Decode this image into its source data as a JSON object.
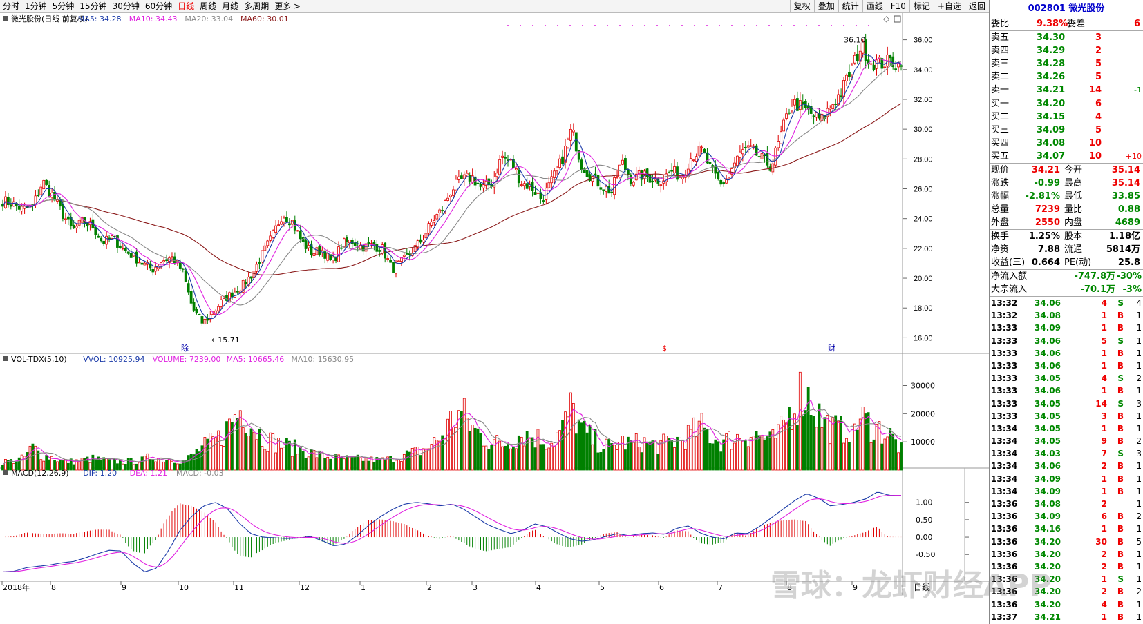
{
  "toolbar": {
    "timeframes": [
      "分时",
      "1分钟",
      "5分钟",
      "15分钟",
      "30分钟",
      "60分钟",
      "日线",
      "周线",
      "月线",
      "多周期",
      "更多 >"
    ],
    "active": 6,
    "right": [
      "复权",
      "叠加",
      "统计",
      "画线",
      "F10",
      "标记",
      "+自选",
      "返回"
    ]
  },
  "indicators": {
    "price_title": "微光股份(日线 前复权)",
    "ma": [
      {
        "label": "MA5: 34.28",
        "color": "#1a3aa8"
      },
      {
        "label": "MA10: 34.43",
        "color": "#e020e0"
      },
      {
        "label": "MA20: 33.04",
        "color": "#888888"
      },
      {
        "label": "MA60: 30.01",
        "color": "#8b1a1a"
      }
    ],
    "vol_title": "VOL-TDX(5,10)",
    "vol": [
      {
        "label": "VVOL: 10925.94",
        "color": "#1a3aa8"
      },
      {
        "label": "VOLUME: 7239.00",
        "color": "#e020e0"
      },
      {
        "label": "MA5: 10665.46",
        "color": "#e020e0"
      },
      {
        "label": "MA10: 15630.95",
        "color": "#888888"
      }
    ],
    "macd_title": "MACD(12,26,9)",
    "macd": [
      {
        "label": "DIF: 1.20",
        "color": "#1a3aa8"
      },
      {
        "label": "DEA: 1.21",
        "color": "#e020e0"
      },
      {
        "label": "MACD: -0.03",
        "color": "#888888"
      }
    ]
  },
  "chart_data": {
    "type": "candlestick",
    "x_labels": [
      "2018年",
      "8",
      "9",
      "10",
      "11",
      "12",
      "1",
      "2",
      "3",
      "4",
      "5",
      "6",
      "7",
      "8",
      "9"
    ],
    "price_ticks": [
      "36.00",
      "34.00",
      "32.00",
      "30.00",
      "28.00",
      "26.00",
      "24.00",
      "22.00",
      "20.00",
      "18.00",
      "16.00"
    ],
    "price_range": [
      15,
      37
    ],
    "annotations": {
      "high": "36.10",
      "low": "15.71"
    },
    "markers": [
      "除",
      "$",
      "财"
    ],
    "volume_ticks": [
      "30000",
      "20000",
      "10000"
    ],
    "volume_range": [
      0,
      36000
    ],
    "macd_ticks": [
      "1.00",
      "0.50",
      "0.00",
      "-0.50"
    ],
    "macd_range": [
      -1.25,
      1.55
    ],
    "period_label": "日线",
    "price_path": [
      25.2,
      25.0,
      24.6,
      24.8,
      26.5,
      25.5,
      24.3,
      23.2,
      23.8,
      23.5,
      22.4,
      22.7,
      22.0,
      21.5,
      21.0,
      20.6,
      21.2,
      21.4,
      20.5,
      18.0,
      17.0,
      17.6,
      18.5,
      19.0,
      19.5,
      20.3,
      21.6,
      22.8,
      24.3,
      23.8,
      22.4,
      21.7,
      21.9,
      21.0,
      22.3,
      22.5,
      22.1,
      22.2,
      22.0,
      20.6,
      21.1,
      21.8,
      22.6,
      23.8,
      24.6,
      26.0,
      26.6,
      26.8,
      26.0,
      26.4,
      28.2,
      27.7,
      26.4,
      26.1,
      25.3,
      26.5,
      27.9,
      30.0,
      27.6,
      26.8,
      26.2,
      25.8,
      27.8,
      26.6,
      26.9,
      26.7,
      26.6,
      27.2,
      26.8,
      28.2,
      28.6,
      27.2,
      26.2,
      27.3,
      28.5,
      28.6,
      28.0,
      27.5,
      29.7,
      31.8,
      31.5,
      31.0,
      30.6,
      31.6,
      32.5,
      34.0,
      35.6,
      34.5,
      34.4,
      34.6,
      34.21
    ],
    "volume_path": [
      3,
      3.2,
      4,
      8,
      5,
      4.5,
      3,
      3,
      3.5,
      4,
      3.5,
      3,
      3,
      3,
      3.5,
      5,
      4,
      4,
      3,
      5,
      8,
      10,
      12,
      18,
      22,
      16,
      12,
      10,
      9,
      8,
      7,
      6,
      5,
      4.5,
      4,
      4,
      3.8,
      3.6,
      3.5,
      4,
      5,
      6,
      7,
      9,
      12,
      18,
      20,
      15,
      12,
      10,
      9,
      11,
      13,
      12,
      11,
      10,
      14,
      22,
      14,
      11,
      9,
      8,
      10,
      9,
      10,
      9,
      9,
      10,
      11,
      13,
      15,
      12,
      10,
      11,
      12,
      13,
      12,
      10,
      14,
      22,
      28,
      25,
      18,
      15,
      14,
      16,
      18,
      16,
      14,
      12,
      7.2
    ],
    "macd_path": [
      -1.0,
      -0.98,
      -0.88,
      -0.84,
      -0.8,
      -0.74,
      -0.7,
      -0.6,
      -0.48,
      -0.38,
      -0.4,
      -0.75,
      -1.0,
      -0.9,
      -0.4,
      0.2,
      0.6,
      0.9,
      1.0,
      0.82,
      0.4,
      0.1,
      0.0,
      -0.02,
      -0.04,
      -0.03,
      0.02,
      -0.1,
      -0.25,
      -0.2,
      0.05,
      0.35,
      0.6,
      0.8,
      0.95,
      1.0,
      0.96,
      0.9,
      0.95,
      0.8,
      0.58,
      0.36,
      0.22,
      0.1,
      0.2,
      0.38,
      0.3,
      0.12,
      -0.05,
      -0.12,
      -0.08,
      0.02,
      0.1,
      0.04,
      0.1,
      0.12,
      0.08,
      0.25,
      0.32,
      0.12,
      0.0,
      -0.05,
      0.12,
      0.1,
      0.3,
      0.55,
      0.8,
      1.05,
      1.25,
      1.12,
      0.9,
      0.94,
      1.0,
      1.1,
      1.3,
      1.2,
      1.2
    ]
  },
  "quote": {
    "code": "002801",
    "name": "微光股份",
    "weibi_label": "委比",
    "weibi": "9.38%",
    "weicha_label": "委差",
    "weicha": "6",
    "asks": [
      {
        "label": "卖五",
        "price": "34.30",
        "vol": "3",
        "chg": ""
      },
      {
        "label": "卖四",
        "price": "34.29",
        "vol": "2",
        "chg": ""
      },
      {
        "label": "卖三",
        "price": "34.28",
        "vol": "5",
        "chg": ""
      },
      {
        "label": "卖二",
        "price": "34.26",
        "vol": "5",
        "chg": ""
      },
      {
        "label": "卖一",
        "price": "34.21",
        "vol": "14",
        "chg": "-1"
      }
    ],
    "bids": [
      {
        "label": "买一",
        "price": "34.20",
        "vol": "6",
        "chg": ""
      },
      {
        "label": "买二",
        "price": "34.15",
        "vol": "4",
        "chg": ""
      },
      {
        "label": "买三",
        "price": "34.09",
        "vol": "5",
        "chg": ""
      },
      {
        "label": "买四",
        "price": "34.08",
        "vol": "10",
        "chg": ""
      },
      {
        "label": "买五",
        "price": "34.07",
        "vol": "10",
        "chg": "+10"
      }
    ],
    "stats": [
      {
        "l1": "现价",
        "v1": "34.21",
        "c1": "red",
        "l2": "今开",
        "v2": "35.14",
        "c2": "red"
      },
      {
        "l1": "涨跌",
        "v1": "-0.99",
        "c1": "grn",
        "l2": "最高",
        "v2": "35.14",
        "c2": "red"
      },
      {
        "l1": "涨幅",
        "v1": "-2.81%",
        "c1": "grn",
        "l2": "最低",
        "v2": "33.85",
        "c2": "grn"
      },
      {
        "l1": "总量",
        "v1": "7239",
        "c1": "red",
        "l2": "量比",
        "v2": "0.88",
        "c2": "grn"
      },
      {
        "l1": "外盘",
        "v1": "2550",
        "c1": "red",
        "l2": "内盘",
        "v2": "4689",
        "c2": "grn"
      }
    ],
    "stats2": [
      {
        "l1": "换手",
        "v1": "1.25%",
        "l2": "股本",
        "v2": "1.18亿"
      },
      {
        "l1": "净资",
        "v1": "7.88",
        "l2": "流通",
        "v2": "5814万"
      },
      {
        "l1": "收益(三)",
        "v1": "0.664",
        "l2": "PE(动)",
        "v2": "25.8"
      }
    ],
    "flows": [
      {
        "label": "净流入额",
        "value": "-747.8万",
        "pct": "-30%"
      },
      {
        "label": "大宗流入",
        "value": "-70.1万",
        "pct": "-3%"
      }
    ]
  },
  "trades": [
    {
      "t": "13:32",
      "p": "34.06",
      "v": "4",
      "s": "S",
      "n": "4"
    },
    {
      "t": "13:32",
      "p": "34.08",
      "v": "1",
      "s": "B",
      "n": "1"
    },
    {
      "t": "13:33",
      "p": "34.09",
      "v": "1",
      "s": "B",
      "n": "1"
    },
    {
      "t": "13:33",
      "p": "34.06",
      "v": "5",
      "s": "S",
      "n": "1"
    },
    {
      "t": "13:33",
      "p": "34.06",
      "v": "1",
      "s": "B",
      "n": "1"
    },
    {
      "t": "13:33",
      "p": "34.06",
      "v": "1",
      "s": "B",
      "n": "1"
    },
    {
      "t": "13:33",
      "p": "34.05",
      "v": "4",
      "s": "S",
      "n": "2"
    },
    {
      "t": "13:33",
      "p": "34.06",
      "v": "1",
      "s": "B",
      "n": "1"
    },
    {
      "t": "13:33",
      "p": "34.05",
      "v": "14",
      "s": "S",
      "n": "3"
    },
    {
      "t": "13:33",
      "p": "34.05",
      "v": "3",
      "s": "B",
      "n": "1"
    },
    {
      "t": "13:34",
      "p": "34.05",
      "v": "1",
      "s": "B",
      "n": "1"
    },
    {
      "t": "13:34",
      "p": "34.05",
      "v": "9",
      "s": "B",
      "n": "2"
    },
    {
      "t": "13:34",
      "p": "34.03",
      "v": "7",
      "s": "S",
      "n": "3"
    },
    {
      "t": "13:34",
      "p": "34.06",
      "v": "2",
      "s": "B",
      "n": "1"
    },
    {
      "t": "13:34",
      "p": "34.09",
      "v": "1",
      "s": "B",
      "n": "1"
    },
    {
      "t": "13:34",
      "p": "34.09",
      "v": "1",
      "s": "B",
      "n": "1"
    },
    {
      "t": "13:36",
      "p": "34.08",
      "v": "2",
      "s": "",
      "n": "1"
    },
    {
      "t": "13:36",
      "p": "34.09",
      "v": "6",
      "s": "B",
      "n": "2"
    },
    {
      "t": "13:36",
      "p": "34.16",
      "v": "1",
      "s": "B",
      "n": "1"
    },
    {
      "t": "13:36",
      "p": "34.20",
      "v": "30",
      "s": "B",
      "n": "5"
    },
    {
      "t": "13:36",
      "p": "34.20",
      "v": "2",
      "s": "B",
      "n": "1"
    },
    {
      "t": "13:36",
      "p": "34.20",
      "v": "2",
      "s": "B",
      "n": "1"
    },
    {
      "t": "13:36",
      "p": "34.20",
      "v": "1",
      "s": "S",
      "n": "1"
    },
    {
      "t": "13:36",
      "p": "34.20",
      "v": "2",
      "s": "B",
      "n": "2"
    },
    {
      "t": "13:36",
      "p": "34.20",
      "v": "4",
      "s": "B",
      "n": "1"
    },
    {
      "t": "13:37",
      "p": "34.21",
      "v": "1",
      "s": "B",
      "n": "1"
    }
  ],
  "watermark": "雪球：龙虾财经APP",
  "colors": {
    "up": "#e00000",
    "down": "#008000",
    "ma5": "#1a3aa8",
    "ma10": "#e020e0",
    "ma20": "#888888",
    "ma60": "#8b1a1a"
  }
}
